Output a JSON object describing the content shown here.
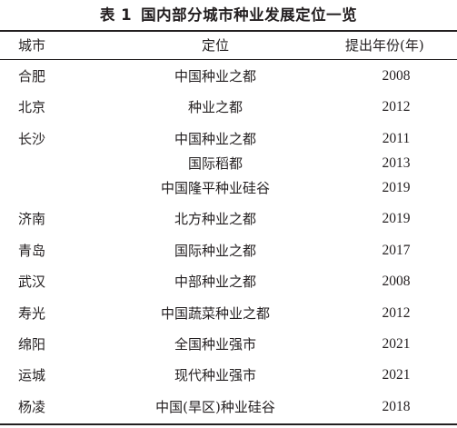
{
  "caption": {
    "num": "表 1",
    "title": "国内部分城市种业发展定位一览"
  },
  "columns": {
    "city": "城市",
    "position": "定位",
    "year": "提出年份(年)"
  },
  "rows": [
    {
      "city": "合肥",
      "position": "中国种业之都",
      "year": "2008"
    },
    {
      "city": "北京",
      "position": "种业之都",
      "year": "2012"
    },
    {
      "city": "长沙",
      "position": "中国种业之都",
      "year": "2011"
    },
    {
      "city": "",
      "position": "国际稻都",
      "year": "2013"
    },
    {
      "city": "",
      "position": "中国隆平种业硅谷",
      "year": "2019"
    },
    {
      "city": "济南",
      "position": "北方种业之都",
      "year": "2019"
    },
    {
      "city": "青岛",
      "position": "国际种业之都",
      "year": "2017"
    },
    {
      "city": "武汉",
      "position": "中部种业之都",
      "year": "2008"
    },
    {
      "city": "寿光",
      "position": "中国蔬菜种业之都",
      "year": "2012"
    },
    {
      "city": "绵阳",
      "position": "全国种业强市",
      "year": "2021"
    },
    {
      "city": "运城",
      "position": "现代种业强市",
      "year": "2021"
    },
    {
      "city": "杨凌",
      "position": "中国(旱区)种业硅谷",
      "year": "2018"
    }
  ]
}
